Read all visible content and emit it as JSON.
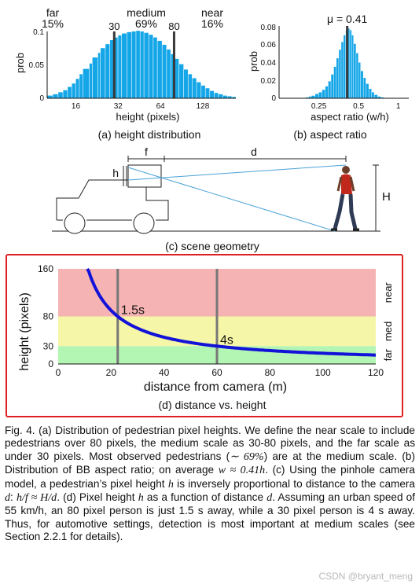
{
  "colors": {
    "hist_fill": "#15a6e8",
    "marker": "#3a3a3a",
    "curve": "#1212d8",
    "band_near": "#f6b3b3",
    "band_med": "#f6f6a8",
    "band_far": "#b3f5b3",
    "label_near": "#c27a7a",
    "label_med": "#8f8f3c",
    "label_far": "#4f8f4f",
    "frame": "#e02020"
  },
  "fig_a": {
    "caption": "(a)  height distribution",
    "scale_labels": [
      {
        "name": "far",
        "pct": "15%"
      },
      {
        "name": "medium",
        "pct": "69%"
      },
      {
        "name": "near",
        "pct": "16%"
      }
    ],
    "marker_labels": [
      "30",
      "80"
    ],
    "ylabel": "prob",
    "xlabel": "height (pixels)",
    "y_ticks": [
      "0",
      "0.05",
      "0.1"
    ],
    "x_ticks": [
      "16",
      "32",
      "64",
      "128"
    ]
  },
  "fig_b": {
    "caption": "(b)  aspect ratio",
    "mu_label": "μ = 0.41",
    "ylabel": "prob",
    "xlabel": "aspect ratio (w/h)",
    "y_ticks": [
      "0",
      "0.02",
      "0.04",
      "0.06",
      "0.08"
    ],
    "x_ticks": [
      "0.25",
      "0.5",
      "1"
    ]
  },
  "fig_c": {
    "caption": "(c)  scene geometry",
    "labels": {
      "f": "f",
      "d": "d",
      "h": "h",
      "H": "H"
    }
  },
  "chart_data": [
    {
      "type": "bar",
      "name_ref": "fig_a",
      "x_scale": "log2",
      "xlim": [
        10,
        220
      ],
      "ylim": [
        0,
        0.1
      ],
      "x": [
        10,
        11,
        12,
        13,
        14,
        15,
        16,
        17,
        18,
        20,
        21,
        23,
        24,
        26,
        28,
        30,
        32,
        34,
        37,
        40,
        43,
        46,
        49,
        53,
        57,
        61,
        66,
        71,
        76,
        81,
        87,
        94,
        101,
        108,
        116,
        125,
        134,
        144,
        155,
        166,
        179,
        192,
        207
      ],
      "values": [
        0.004,
        0.006,
        0.009,
        0.012,
        0.017,
        0.022,
        0.029,
        0.036,
        0.044,
        0.052,
        0.061,
        0.068,
        0.075,
        0.081,
        0.087,
        0.091,
        0.094,
        0.097,
        0.099,
        0.1,
        0.101,
        0.1,
        0.098,
        0.095,
        0.091,
        0.086,
        0.08,
        0.073,
        0.066,
        0.059,
        0.051,
        0.043,
        0.036,
        0.03,
        0.024,
        0.019,
        0.015,
        0.011,
        0.008,
        0.006,
        0.004,
        0.003,
        0.002
      ],
      "markers": [
        30,
        80
      ]
    },
    {
      "type": "bar",
      "name_ref": "fig_b",
      "x_scale": "log2",
      "xlim": [
        0.125,
        1.2
      ],
      "ylim": [
        0,
        0.085
      ],
      "x": [
        0.2,
        0.21,
        0.22,
        0.235,
        0.25,
        0.265,
        0.28,
        0.295,
        0.31,
        0.325,
        0.34,
        0.355,
        0.37,
        0.385,
        0.4,
        0.415,
        0.43,
        0.445,
        0.46,
        0.48,
        0.5,
        0.52,
        0.545,
        0.57,
        0.6,
        0.63,
        0.66,
        0.7,
        0.74
      ],
      "values": [
        0.001,
        0.002,
        0.003,
        0.005,
        0.007,
        0.01,
        0.014,
        0.02,
        0.028,
        0.037,
        0.047,
        0.057,
        0.066,
        0.074,
        0.08,
        0.082,
        0.08,
        0.074,
        0.064,
        0.053,
        0.042,
        0.032,
        0.024,
        0.017,
        0.011,
        0.007,
        0.004,
        0.002,
        0.001
      ],
      "mean": 0.41
    },
    {
      "type": "line",
      "name_ref": "fig_d",
      "caption": "(d)  distance vs. height",
      "xlabel": "distance from camera (m)",
      "ylabel": "height (pixels)",
      "xlim": [
        0,
        120
      ],
      "ylim": [
        0,
        160
      ],
      "x_ticks": [
        "0",
        "20",
        "40",
        "60",
        "80",
        "100",
        "120"
      ],
      "y_ticks": [
        "0",
        "30",
        "80",
        "160"
      ],
      "bands": [
        {
          "name": "near",
          "from": 80,
          "to": 160
        },
        {
          "name": "med",
          "from": 30,
          "to": 80
        },
        {
          "name": "far",
          "from": 0,
          "to": 30
        }
      ],
      "series": [
        {
          "x_start": 11,
          "x_end": 120,
          "k": 1800
        }
      ],
      "markers": [
        {
          "x": 22.5,
          "label": "1.5s"
        },
        {
          "x": 60,
          "label": "4s"
        }
      ]
    }
  ],
  "caption_parts": [
    "Fig. 4.  (a) Distribution of pedestrian pixel heights. We define the near scale to include pedestrians over 80 pixels, the medium scale as 30-80 pixels, and the far scale as under 30 pixels. Most observed pedestrians (",
    "∼ 69%",
    ") are at the medium scale. (b) Distribution of BB aspect ratio; on average ",
    "w ≈ 0.41h",
    ". (c) Using the pinhole camera model, a pedestrian’s pixel height ",
    "h",
    " is inversely proportional to distance to the camera ",
    "d",
    ": ",
    "h/f ≈ H/d",
    ". (d) Pixel height ",
    "h",
    " as a function of distance ",
    "d",
    ". Assuming an urban speed of 55 km/h, an 80 pixel person is just 1.5 s away, while a 30 pixel person is 4 s away. Thus, for automotive settings, detection is most important at medium scales (see Section 2.2.1 for details)."
  ],
  "watermark": "CSDN @bryant_meng"
}
